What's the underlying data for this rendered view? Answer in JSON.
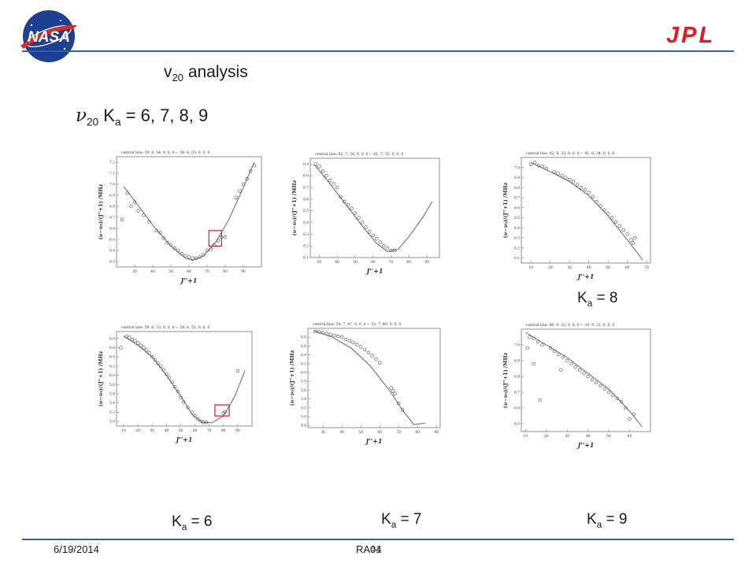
{
  "slide": {
    "title_main": "v",
    "title_sub": "20",
    "title_rest": " analysis",
    "subtitle_symbol": "ν",
    "subtitle_sub": "20",
    "subtitle_k": "K",
    "subtitle_ksub": "a",
    "subtitle_rest": " = 6, 7, 8, 9",
    "footer_date": "6/19/2014",
    "footer_center": "RA04",
    "page_number": "41",
    "logos": {
      "left": "NASA",
      "right": "JPL"
    },
    "colors": {
      "rule": "#2e5fa8",
      "jpl_red": "#e01b22",
      "nasa_blue": "#1f3f94",
      "nasa_red": "#d62d20",
      "highlight": "#d42020"
    }
  },
  "labels": [
    {
      "k": "K",
      "sub": "a",
      "rest": " = 8"
    },
    {
      "k": "K",
      "sub": "a",
      "rest": " = 6"
    },
    {
      "k": "K",
      "sub": "a",
      "rest": " = 7"
    },
    {
      "k": "K",
      "sub": "a",
      "rest": " = 9"
    }
  ],
  "plots": [
    {
      "header": "central line:   59, 6, 54, 0, 0, 0 ←   58, 6, 53, 0, 0, 0",
      "ylabel": "(ν−ν₀)/(J''+1) /MHz",
      "xlabel": "J''+1",
      "xlim": [
        20,
        100
      ],
      "ylim": [
        6.25,
        7.25
      ],
      "xticks": [
        30,
        40,
        50,
        60,
        70,
        80,
        90
      ],
      "yticks": [
        6.3,
        6.4,
        6.5,
        6.6,
        6.7,
        6.8,
        6.9,
        7.0,
        7.1,
        7.2
      ],
      "curve": [
        [
          24,
          6.98
        ],
        [
          30,
          6.85
        ],
        [
          40,
          6.63
        ],
        [
          50,
          6.44
        ],
        [
          58,
          6.33
        ],
        [
          62,
          6.31
        ],
        [
          68,
          6.35
        ],
        [
          75,
          6.48
        ],
        [
          82,
          6.68
        ],
        [
          90,
          6.97
        ],
        [
          96,
          7.2
        ]
      ],
      "points": [
        [
          23,
          6.68
        ],
        [
          26,
          6.92
        ],
        [
          28,
          6.8
        ],
        [
          30,
          6.84
        ],
        [
          32,
          6.76
        ],
        [
          35,
          6.72
        ],
        [
          38,
          6.66
        ],
        [
          42,
          6.58
        ],
        [
          44,
          6.56
        ],
        [
          46,
          6.51
        ],
        [
          48,
          6.47
        ],
        [
          50,
          6.45
        ],
        [
          52,
          6.42
        ],
        [
          54,
          6.4
        ],
        [
          56,
          6.37
        ],
        [
          58,
          6.35
        ],
        [
          60,
          6.34
        ],
        [
          62,
          6.33
        ],
        [
          64,
          6.33
        ],
        [
          66,
          6.34
        ],
        [
          68,
          6.36
        ],
        [
          70,
          6.4
        ],
        [
          72,
          6.41
        ],
        [
          74,
          6.45
        ],
        [
          76,
          6.49
        ],
        [
          78,
          6.52
        ],
        [
          80,
          6.52
        ],
        [
          86,
          6.88
        ],
        [
          88,
          6.94
        ],
        [
          90,
          7.0
        ],
        [
          92,
          7.05
        ],
        [
          94,
          7.12
        ],
        [
          96,
          7.17
        ]
      ],
      "highlight": {
        "x": [
          71,
          78
        ],
        "y": [
          6.44,
          6.58
        ]
      }
    },
    {
      "header": "central line:   62, 7, 56, 0, 0, 0 ←   61, 7, 55, 0, 0, 0",
      "ylabel": "(ν−ν₀)/(J''+1) /MHz",
      "xlabel": "J''+1",
      "xlim": [
        25,
        97
      ],
      "ylim": [
        6.1,
        6.95
      ],
      "xticks": [
        30,
        40,
        50,
        60,
        70,
        80,
        90
      ],
      "yticks": [
        6.1,
        6.2,
        6.3,
        6.4,
        6.5,
        6.6,
        6.7,
        6.8,
        6.9
      ],
      "curve": [
        [
          27,
          6.9
        ],
        [
          35,
          6.75
        ],
        [
          45,
          6.55
        ],
        [
          55,
          6.35
        ],
        [
          62,
          6.22
        ],
        [
          68,
          6.15
        ],
        [
          74,
          6.17
        ],
        [
          80,
          6.28
        ],
        [
          88,
          6.45
        ],
        [
          93,
          6.58
        ]
      ],
      "points": [
        [
          28,
          6.9
        ],
        [
          30,
          6.88
        ],
        [
          32,
          6.84
        ],
        [
          34,
          6.8
        ],
        [
          36,
          6.76
        ],
        [
          38,
          6.73
        ],
        [
          40,
          6.7
        ],
        [
          42,
          6.62
        ],
        [
          44,
          6.58
        ],
        [
          46,
          6.55
        ],
        [
          48,
          6.52
        ],
        [
          50,
          6.48
        ],
        [
          52,
          6.44
        ],
        [
          54,
          6.4
        ],
        [
          56,
          6.36
        ],
        [
          58,
          6.32
        ],
        [
          60,
          6.29
        ],
        [
          62,
          6.26
        ],
        [
          64,
          6.23
        ],
        [
          66,
          6.2
        ],
        [
          68,
          6.18
        ],
        [
          70,
          6.16
        ],
        [
          72,
          6.16
        ]
      ]
    },
    {
      "header": "central line:   42, 8, 35, 0, 0, 0 ←   41, 8, 34, 0, 0, 0",
      "ylabel": "(ν−ν₀)/(J''+1) /MHz",
      "xlabel": "J''+1",
      "xlim": [
        5,
        72
      ],
      "ylim": [
        6.05,
        7.1
      ],
      "xticks": [
        10,
        20,
        30,
        40,
        50,
        60,
        70
      ],
      "yticks": [
        6.1,
        6.2,
        6.3,
        6.4,
        6.5,
        6.6,
        6.7,
        6.8,
        6.9,
        7.0
      ],
      "curve": [
        [
          10,
          7.05
        ],
        [
          20,
          6.96
        ],
        [
          30,
          6.86
        ],
        [
          40,
          6.72
        ],
        [
          50,
          6.52
        ],
        [
          60,
          6.28
        ],
        [
          68,
          6.08
        ]
      ],
      "points": [
        [
          10,
          7.03
        ],
        [
          12,
          7.05
        ],
        [
          14,
          7.02
        ],
        [
          16,
          7.01
        ],
        [
          18,
          6.99
        ],
        [
          22,
          6.96
        ],
        [
          24,
          6.94
        ],
        [
          26,
          6.92
        ],
        [
          28,
          6.9
        ],
        [
          30,
          6.88
        ],
        [
          32,
          6.86
        ],
        [
          34,
          6.83
        ],
        [
          36,
          6.8
        ],
        [
          38,
          6.78
        ],
        [
          40,
          6.75
        ],
        [
          42,
          6.71
        ],
        [
          44,
          6.66
        ],
        [
          46,
          6.62
        ],
        [
          48,
          6.58
        ],
        [
          50,
          6.54
        ],
        [
          52,
          6.5
        ],
        [
          54,
          6.46
        ],
        [
          56,
          6.42
        ],
        [
          58,
          6.38
        ],
        [
          60,
          6.34
        ],
        [
          62,
          6.28
        ],
        [
          63,
          6.25
        ],
        [
          64,
          6.3
        ]
      ]
    },
    {
      "header": "central line:   59, 6, 53, 0, 0, 0 ←   58, 6, 52, 0, 0, 0",
      "ylabel": "(ν−ν₀)/(J''+1) /MHz",
      "xlabel": "J''+1",
      "xlim": [
        5,
        100
      ],
      "ylim": [
        4.9,
        6.95
      ],
      "xticks": [
        10,
        20,
        30,
        40,
        50,
        60,
        70,
        80,
        90
      ],
      "yticks": [
        5.0,
        5.2,
        5.4,
        5.6,
        5.8,
        6.0,
        6.2,
        6.4,
        6.6,
        6.8
      ],
      "curve": [
        [
          10,
          6.85
        ],
        [
          20,
          6.65
        ],
        [
          30,
          6.4
        ],
        [
          40,
          6.0
        ],
        [
          50,
          5.55
        ],
        [
          58,
          5.15
        ],
        [
          65,
          4.98
        ],
        [
          72,
          4.97
        ],
        [
          80,
          5.12
        ],
        [
          88,
          5.55
        ],
        [
          95,
          6.1
        ]
      ],
      "points": [
        [
          8,
          6.6
        ],
        [
          12,
          6.85
        ],
        [
          14,
          6.82
        ],
        [
          16,
          6.78
        ],
        [
          18,
          6.75
        ],
        [
          20,
          6.7
        ],
        [
          22,
          6.65
        ],
        [
          24,
          6.6
        ],
        [
          26,
          6.55
        ],
        [
          28,
          6.48
        ],
        [
          30,
          6.4
        ],
        [
          32,
          6.33
        ],
        [
          34,
          6.26
        ],
        [
          36,
          6.2
        ],
        [
          38,
          6.12
        ],
        [
          40,
          6.03
        ],
        [
          42,
          5.95
        ],
        [
          44,
          5.85
        ],
        [
          46,
          5.75
        ],
        [
          48,
          5.65
        ],
        [
          50,
          5.52
        ],
        [
          52,
          5.42
        ],
        [
          55,
          5.3
        ],
        [
          58,
          5.2
        ],
        [
          60,
          5.12
        ],
        [
          62,
          5.05
        ],
        [
          64,
          5.0
        ],
        [
          66,
          4.98
        ],
        [
          68,
          4.98
        ],
        [
          80,
          5.18
        ],
        [
          81,
          5.2
        ],
        [
          90,
          6.1
        ]
      ],
      "highlight": {
        "x": [
          74,
          84
        ],
        "y": [
          5.12,
          5.36
        ]
      }
    },
    {
      "header": "central line:   54, 7, 47, 0, 0, 0 ←   53, 7, 46, 0, 0, 0",
      "ylabel": "(ν−ν₀)/(J''+1) /MHz",
      "xlabel": "J''+1",
      "xlim": [
        22,
        92
      ],
      "ylim": [
        4.75,
        7.0
      ],
      "xticks": [
        30,
        40,
        50,
        60,
        70,
        80,
        90
      ],
      "yticks": [
        4.8,
        5.0,
        5.2,
        5.4,
        5.6,
        5.8,
        6.0,
        6.2,
        6.4,
        6.6,
        6.8
      ],
      "curve": [
        [
          25,
          6.95
        ],
        [
          35,
          6.8
        ],
        [
          45,
          6.55
        ],
        [
          55,
          6.15
        ],
        [
          65,
          5.6
        ],
        [
          72,
          5.15
        ],
        [
          78,
          4.82
        ],
        [
          84,
          4.85
        ]
      ],
      "points": [
        [
          26,
          6.93
        ],
        [
          28,
          6.92
        ],
        [
          30,
          6.9
        ],
        [
          32,
          6.88
        ],
        [
          34,
          6.86
        ],
        [
          36,
          6.84
        ],
        [
          38,
          6.82
        ],
        [
          40,
          6.8
        ],
        [
          42,
          6.75
        ],
        [
          44,
          6.72
        ],
        [
          46,
          6.68
        ],
        [
          48,
          6.63
        ],
        [
          50,
          6.58
        ],
        [
          52,
          6.52
        ],
        [
          54,
          6.45
        ],
        [
          56,
          6.38
        ],
        [
          58,
          6.3
        ],
        [
          60,
          6.22
        ],
        [
          66,
          5.65
        ],
        [
          67,
          5.58
        ],
        [
          68,
          5.52
        ],
        [
          70,
          5.3
        ],
        [
          72,
          5.15
        ]
      ]
    },
    {
      "header": "central line:   40, 9, 32, 0, 0, 0 ←   39, 9, 31, 0, 0, 0",
      "ylabel": "(ν−ν₀)/(J''+1) /MHz",
      "xlabel": "J''+1",
      "xlim": [
        8,
        70
      ],
      "ylim": [
        6.45,
        7.1
      ],
      "xticks": [
        10,
        20,
        30,
        40,
        50,
        60
      ],
      "yticks": [
        6.5,
        6.6,
        6.7,
        6.8,
        6.9,
        7.0
      ],
      "curve": [
        [
          10,
          7.08
        ],
        [
          20,
          7.0
        ],
        [
          30,
          6.92
        ],
        [
          40,
          6.82
        ],
        [
          50,
          6.72
        ],
        [
          60,
          6.58
        ],
        [
          66,
          6.48
        ]
      ],
      "points": [
        [
          12,
          7.05
        ],
        [
          14,
          7.04
        ],
        [
          16,
          7.02
        ],
        [
          18,
          7.0
        ],
        [
          22,
          6.98
        ],
        [
          24,
          6.96
        ],
        [
          26,
          6.94
        ],
        [
          28,
          6.92
        ],
        [
          30,
          6.9
        ],
        [
          32,
          6.88
        ],
        [
          34,
          6.86
        ],
        [
          36,
          6.84
        ],
        [
          38,
          6.82
        ],
        [
          40,
          6.8
        ],
        [
          42,
          6.78
        ],
        [
          44,
          6.76
        ],
        [
          46,
          6.74
        ],
        [
          48,
          6.72
        ],
        [
          50,
          6.7
        ],
        [
          52,
          6.68
        ],
        [
          54,
          6.66
        ],
        [
          56,
          6.64
        ],
        [
          58,
          6.6
        ],
        [
          62,
          6.56
        ],
        [
          11,
          6.98
        ],
        [
          14,
          6.88
        ],
        [
          27,
          6.84
        ],
        [
          17,
          6.65
        ],
        [
          60,
          6.53
        ]
      ]
    }
  ]
}
